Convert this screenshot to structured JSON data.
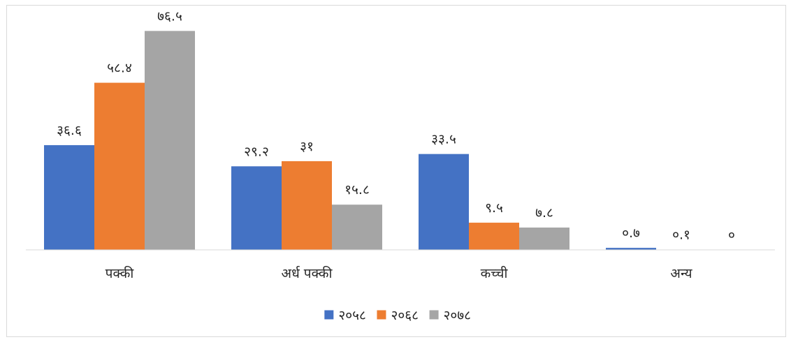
{
  "chart_data": {
    "type": "bar",
    "title": "",
    "xlabel": "",
    "ylabel": "",
    "ylim": [
      0,
      80
    ],
    "grid": false,
    "legend_position": "bottom",
    "categories": [
      "पक्की",
      "अर्ध पक्की",
      "कच्ची",
      "अन्य"
    ],
    "series": [
      {
        "name": "२०५८",
        "color": "#4472C4",
        "values": [
          36.6,
          29.2,
          33.5,
          0.7
        ],
        "labels": [
          "३६.६",
          "२९.२",
          "३३.५",
          "०.७"
        ]
      },
      {
        "name": "२०६८",
        "color": "#ED7D31",
        "values": [
          58.4,
          31,
          9.5,
          0.1
        ],
        "labels": [
          "५८.४",
          "३१",
          "९.५",
          "०.१"
        ]
      },
      {
        "name": "२०७८",
        "color": "#A5A5A5",
        "values": [
          76.5,
          15.8,
          7.8,
          0
        ],
        "labels": [
          "७६.५",
          "१५.८",
          "७.८",
          "०"
        ]
      }
    ]
  }
}
